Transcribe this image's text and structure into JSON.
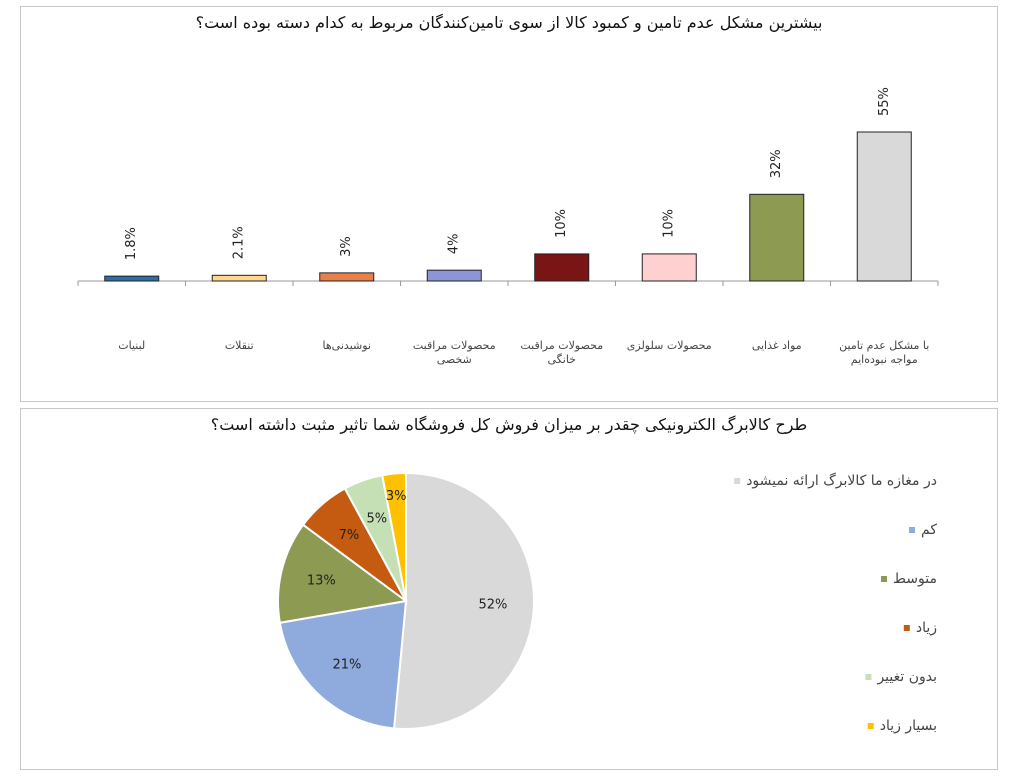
{
  "chart_data": [
    {
      "type": "bar",
      "title": "بیشترین مشکل عدم تامین و کمبود کالا از سوی تامین‌کنندگان مربوط به کدام دسته بوده است؟",
      "categories": [
        [
          "لبنیات"
        ],
        [
          "تنقلات"
        ],
        [
          "نوشیدنی‌ها"
        ],
        [
          "محصولات مراقبت",
          "شخصی"
        ],
        [
          "محصولات مراقبت",
          "خانگی"
        ],
        [
          "محصولات سلولزی"
        ],
        [
          "مواد غذایی"
        ],
        [
          "با مشکل عدم تامین",
          "مواجه نبوده‌ایم"
        ]
      ],
      "values": [
        1.8,
        2.1,
        3,
        4,
        10,
        10,
        32,
        55
      ],
      "value_labels": [
        "1.8%",
        "2.1%",
        "3%",
        "4%",
        "10%",
        "10%",
        "32%",
        "55%"
      ],
      "colors": [
        "#2e6ea6",
        "#ffd890",
        "#e8804a",
        "#8c95d8",
        "#7a1515",
        "#ffd0d0",
        "#8c9a52",
        "#d9d9d9"
      ],
      "ylim": [
        0,
        55
      ],
      "grid": false,
      "legend": "none"
    },
    {
      "type": "pie",
      "title": "طرح کالابرگ الکترونیکی چقدر بر میزان فروش کل فروشگاه شما تاثیر مثبت داشته است؟",
      "slices": [
        {
          "label": "در مغازه ما کالابرگ ارائه نمیشود",
          "value": 52,
          "value_label": "52%",
          "color": "#d9d9d9"
        },
        {
          "label": "کم",
          "value": 21,
          "value_label": "21%",
          "color": "#8faadc"
        },
        {
          "label": "متوسط",
          "value": 13,
          "value_label": "13%",
          "color": "#8c9a52"
        },
        {
          "label": "زیاد",
          "value": 7,
          "value_label": "7%",
          "color": "#c55a11"
        },
        {
          "label": "بدون تغییر",
          "value": 5,
          "value_label": "5%",
          "color": "#c5e0b4"
        },
        {
          "label": "بسیار زیاد",
          "value": 3,
          "value_label": "3%",
          "color": "#ffc000"
        }
      ],
      "legend": "right"
    }
  ]
}
